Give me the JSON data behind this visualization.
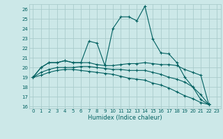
{
  "xlabel": "Humidex (Indice chaleur)",
  "xlim": [
    -0.5,
    23.5
  ],
  "ylim": [
    15.8,
    26.5
  ],
  "yticks": [
    16,
    17,
    18,
    19,
    20,
    21,
    22,
    23,
    24,
    25,
    26
  ],
  "xticks": [
    0,
    1,
    2,
    3,
    4,
    5,
    6,
    7,
    8,
    9,
    10,
    11,
    12,
    13,
    14,
    15,
    16,
    17,
    18,
    19,
    20,
    21,
    22,
    23
  ],
  "bg_color": "#cce8e8",
  "grid_color": "#aacccc",
  "line_color": "#006060",
  "lines": [
    [
      19.0,
      20.0,
      20.5,
      20.5,
      20.7,
      20.5,
      20.5,
      22.7,
      22.5,
      20.2,
      24.0,
      25.2,
      25.2,
      24.8,
      26.3,
      22.9,
      21.5,
      21.4,
      20.5,
      19.0,
      18.0,
      16.7,
      16.2
    ],
    [
      19.0,
      20.0,
      20.5,
      20.5,
      20.7,
      20.5,
      20.5,
      20.5,
      20.3,
      20.2,
      20.2,
      20.3,
      20.4,
      20.4,
      20.5,
      20.4,
      20.3,
      20.3,
      20.2,
      19.8,
      19.5,
      19.2,
      16.2
    ],
    [
      19.0,
      19.5,
      19.8,
      20.0,
      20.0,
      20.0,
      20.1,
      20.1,
      20.0,
      19.9,
      19.8,
      19.8,
      19.7,
      19.7,
      19.7,
      19.5,
      19.3,
      19.0,
      18.8,
      18.5,
      18.0,
      17.2,
      16.2
    ],
    [
      19.0,
      19.2,
      19.5,
      19.7,
      19.8,
      19.8,
      19.7,
      19.6,
      19.5,
      19.4,
      19.3,
      19.1,
      18.9,
      18.8,
      18.7,
      18.4,
      18.2,
      17.9,
      17.5,
      17.1,
      16.8,
      16.4,
      16.2
    ]
  ]
}
